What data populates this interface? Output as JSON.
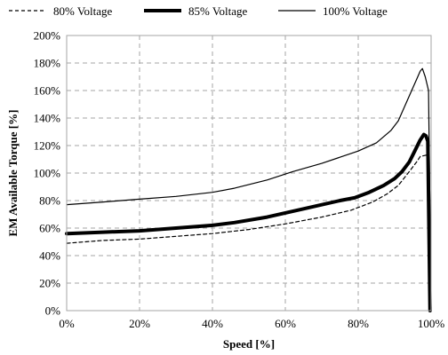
{
  "chart_data": {
    "type": "line",
    "xlabel": "Speed [%]",
    "ylabel": "EM Available Torque [%]",
    "xlim": [
      0,
      100
    ],
    "ylim": [
      0,
      200
    ],
    "x_ticks": [
      0,
      20,
      40,
      60,
      80,
      100
    ],
    "y_ticks": [
      0,
      20,
      40,
      60,
      80,
      100,
      120,
      140,
      160,
      180,
      200
    ],
    "x_tick_labels": [
      "0%",
      "20%",
      "40%",
      "60%",
      "80%",
      "100%"
    ],
    "y_tick_labels": [
      "0%",
      "20%",
      "40%",
      "60%",
      "80%",
      "100%",
      "120%",
      "140%",
      "160%",
      "180%",
      "200%"
    ],
    "grid": true,
    "legend_position": "top",
    "series": [
      {
        "name": "80% Voltage",
        "line_style": "dashed",
        "color": "#000000",
        "x": [
          0,
          10,
          20,
          30,
          40,
          50,
          60,
          70,
          78,
          84,
          88,
          91,
          94,
          96,
          97,
          98.5,
          99.3,
          100
        ],
        "y": [
          49,
          51,
          52,
          54,
          56,
          59,
          63,
          68,
          73,
          79,
          85,
          91,
          101,
          108,
          112,
          113,
          113,
          0
        ]
      },
      {
        "name": "85% Voltage",
        "line_style": "thick",
        "color": "#000000",
        "x": [
          0,
          10,
          20,
          30,
          40,
          46,
          55,
          65,
          75,
          79,
          83,
          87,
          90,
          92,
          94,
          95.5,
          97,
          98,
          98.6,
          99.1,
          99.7
        ],
        "y": [
          56,
          57,
          58,
          60,
          62,
          64,
          68,
          74,
          80,
          82,
          86,
          91,
          96,
          101,
          108,
          116,
          124,
          128,
          127,
          123,
          0
        ]
      },
      {
        "name": "100% Voltage",
        "line_style": "thin",
        "color": "#000000",
        "x": [
          0,
          10,
          20,
          30,
          40,
          46,
          55,
          62,
          70,
          80,
          85,
          89,
          91,
          93,
          95,
          96,
          97,
          97.6,
          98.4,
          99.3,
          100
        ],
        "y": [
          77,
          79,
          81,
          83,
          86,
          89,
          95,
          101,
          107,
          116,
          122,
          131,
          138,
          150,
          162,
          168,
          174,
          176,
          170,
          160,
          0
        ]
      }
    ]
  }
}
